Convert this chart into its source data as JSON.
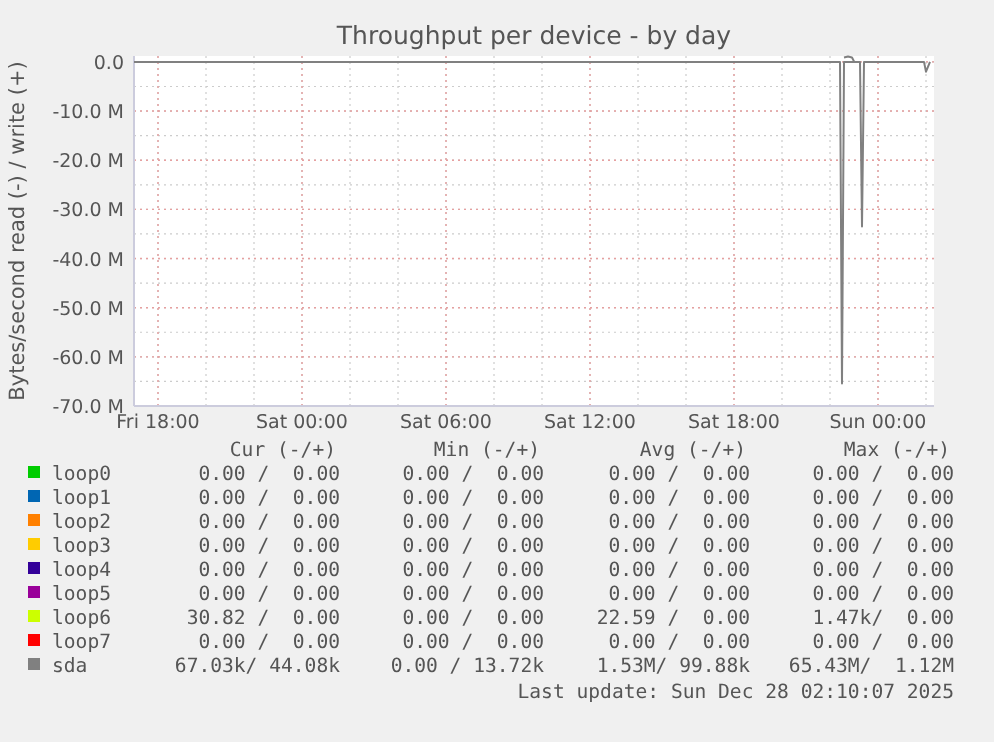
{
  "chart_data": {
    "type": "line",
    "title": "Throughput per device - by day",
    "ylabel": "Bytes/second read (-) / write (+)",
    "xlim": [
      "2025-12-26T17:00",
      "2025-12-28T02:20"
    ],
    "xticks": [
      {
        "value": "2025-12-26T18:00",
        "label": "Fri 18:00"
      },
      {
        "value": "2025-12-27T00:00",
        "label": "Sat 00:00"
      },
      {
        "value": "2025-12-27T06:00",
        "label": "Sat 06:00"
      },
      {
        "value": "2025-12-27T12:00",
        "label": "Sat 12:00"
      },
      {
        "value": "2025-12-27T18:00",
        "label": "Sat 18:00"
      },
      {
        "value": "2025-12-28T00:00",
        "label": "Sun 00:00"
      }
    ],
    "ylim": [
      -70,
      1.2
    ],
    "yticks": [
      {
        "value": 0,
        "label": "0.0"
      },
      {
        "value": -10,
        "label": "-10.0 M"
      },
      {
        "value": -20,
        "label": "-20.0 M"
      },
      {
        "value": -30,
        "label": "-30.0 M"
      },
      {
        "value": -40,
        "label": "-40.0 M"
      },
      {
        "value": -50,
        "label": "-50.0 M"
      },
      {
        "value": -60,
        "label": "-60.0 M"
      },
      {
        "value": -70,
        "label": "-70.0 M"
      }
    ],
    "grid": true,
    "legend": "bottom",
    "series": [
      {
        "name": "loop0",
        "color": "#00cc00"
      },
      {
        "name": "loop1",
        "color": "#0066b3"
      },
      {
        "name": "loop2",
        "color": "#ff8000"
      },
      {
        "name": "loop3",
        "color": "#ffcc00"
      },
      {
        "name": "loop4",
        "color": "#330099"
      },
      {
        "name": "loop5",
        "color": "#990099"
      },
      {
        "name": "loop6",
        "color": "#ccff00"
      },
      {
        "name": "loop7",
        "color": "#ff0000"
      },
      {
        "name": "sda",
        "color": "#808080",
        "x": [
          "2025-12-26T17:00",
          "2025-12-27T22:25",
          "2025-12-27T22:30",
          "2025-12-27T22:35",
          "2025-12-27T23:15",
          "2025-12-27T23:20",
          "2025-12-27T23:25",
          "2025-12-28T01:55",
          "2025-12-28T02:00",
          "2025-12-28T02:10"
        ],
        "values": [
          0,
          0,
          -65.4,
          0,
          0,
          -33.5,
          0,
          0,
          -2,
          0
        ]
      },
      {
        "color": "#808080",
        "x": [
          "2025-12-27T22:35",
          "2025-12-27T22:45",
          "2025-12-27T22:55",
          "2025-12-27T23:00"
        ],
        "values": [
          0.9,
          1.1,
          0.9,
          0.1
        ]
      }
    ],
    "annotations": [
      "Cur (-/+)",
      "Min (-/+)",
      "Avg (-/+)",
      "Max (-/+)",
      "0.00 /  0.00",
      "0.00 /  0.00",
      "0.00 /  0.00",
      "0.00 /  0.00",
      "0.00 /  0.00",
      "0.00 /  0.00",
      "0.00 /  0.00",
      "0.00 /  0.00",
      "0.00 /  0.00",
      "0.00 /  0.00",
      "0.00 /  0.00",
      "0.00 /  0.00",
      "0.00 /  0.00",
      "0.00 /  0.00",
      "0.00 /  0.00",
      "0.00 /  0.00",
      "0.00 /  0.00",
      "0.00 /  0.00",
      "0.00 /  0.00",
      "0.00 /  0.00",
      "0.00 /  0.00",
      "0.00 /  0.00",
      "0.00 /  0.00",
      "0.00 /  0.00",
      "30.82 /  0.00",
      "0.00 /  0.00",
      "22.59 /  0.00",
      "1.47k/  0.00",
      "0.00 /  0.00",
      "0.00 /  0.00",
      "0.00 /  0.00",
      "0.00 /  0.00",
      "67.03k/ 44.08k",
      "0.00 / 13.72k",
      "1.53M/ 99.88k",
      "65.43M/  1.12M",
      "Last update: Sun Dec 28 02:10:07 2025"
    ]
  }
}
